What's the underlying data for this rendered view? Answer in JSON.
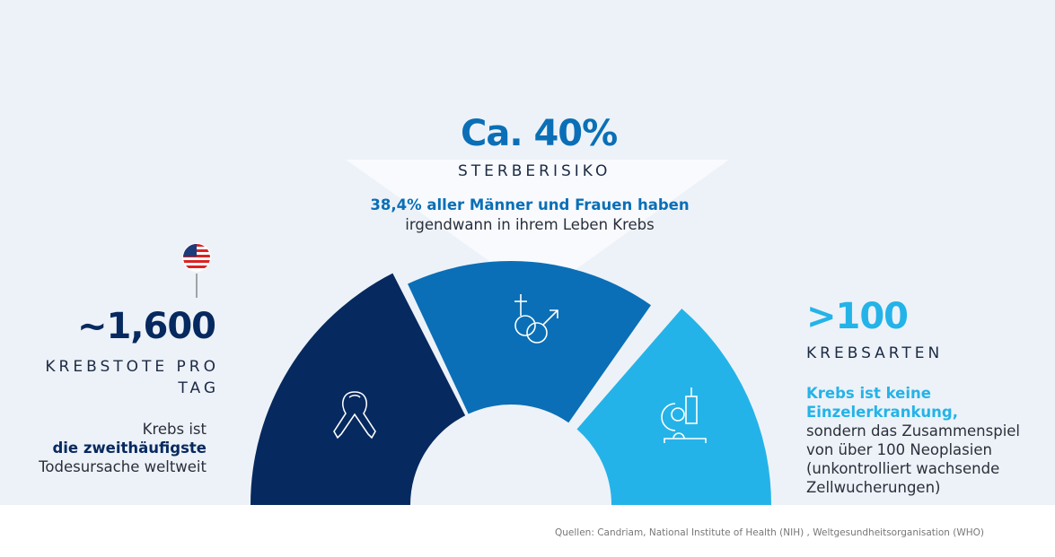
{
  "colors": {
    "navy": "#06295f",
    "mid": "#0a6fb6",
    "light": "#24b3e8",
    "bg": "#edf2f8"
  },
  "center": {
    "value": "Ca. 40%",
    "label": "STERBERISIKO",
    "highlight": "38,4% aller Männer und Frauen haben",
    "text": "irgendwann in ihrem Leben Krebs"
  },
  "left": {
    "value": "~1,600",
    "label_line1": "KREBSTOTE PRO",
    "label_line2": "TAG",
    "text1": "Krebs ist",
    "highlight": "die zweithäufigste",
    "text2": "Todesursache weltweit",
    "icon": "us-flag-icon"
  },
  "right": {
    "value": ">100",
    "label": "KREBSARTEN",
    "highlight1": "Krebs ist keine",
    "highlight2": "Einzelerkrankung,",
    "text1": "sondern das Zusammenspiel",
    "text2": "von über 100 Neoplasien",
    "text3": "(unkontrolliert wachsende",
    "text4": "Zellwucherungen)"
  },
  "segments": [
    {
      "icon": "cancer-ribbon-icon"
    },
    {
      "icon": "gender-symbols-icon"
    },
    {
      "icon": "microscope-icon"
    }
  ],
  "sources": "Quellen: Candriam, National Institute of Health (NIH) , Weltgesundheitsorganisation (WHO)"
}
